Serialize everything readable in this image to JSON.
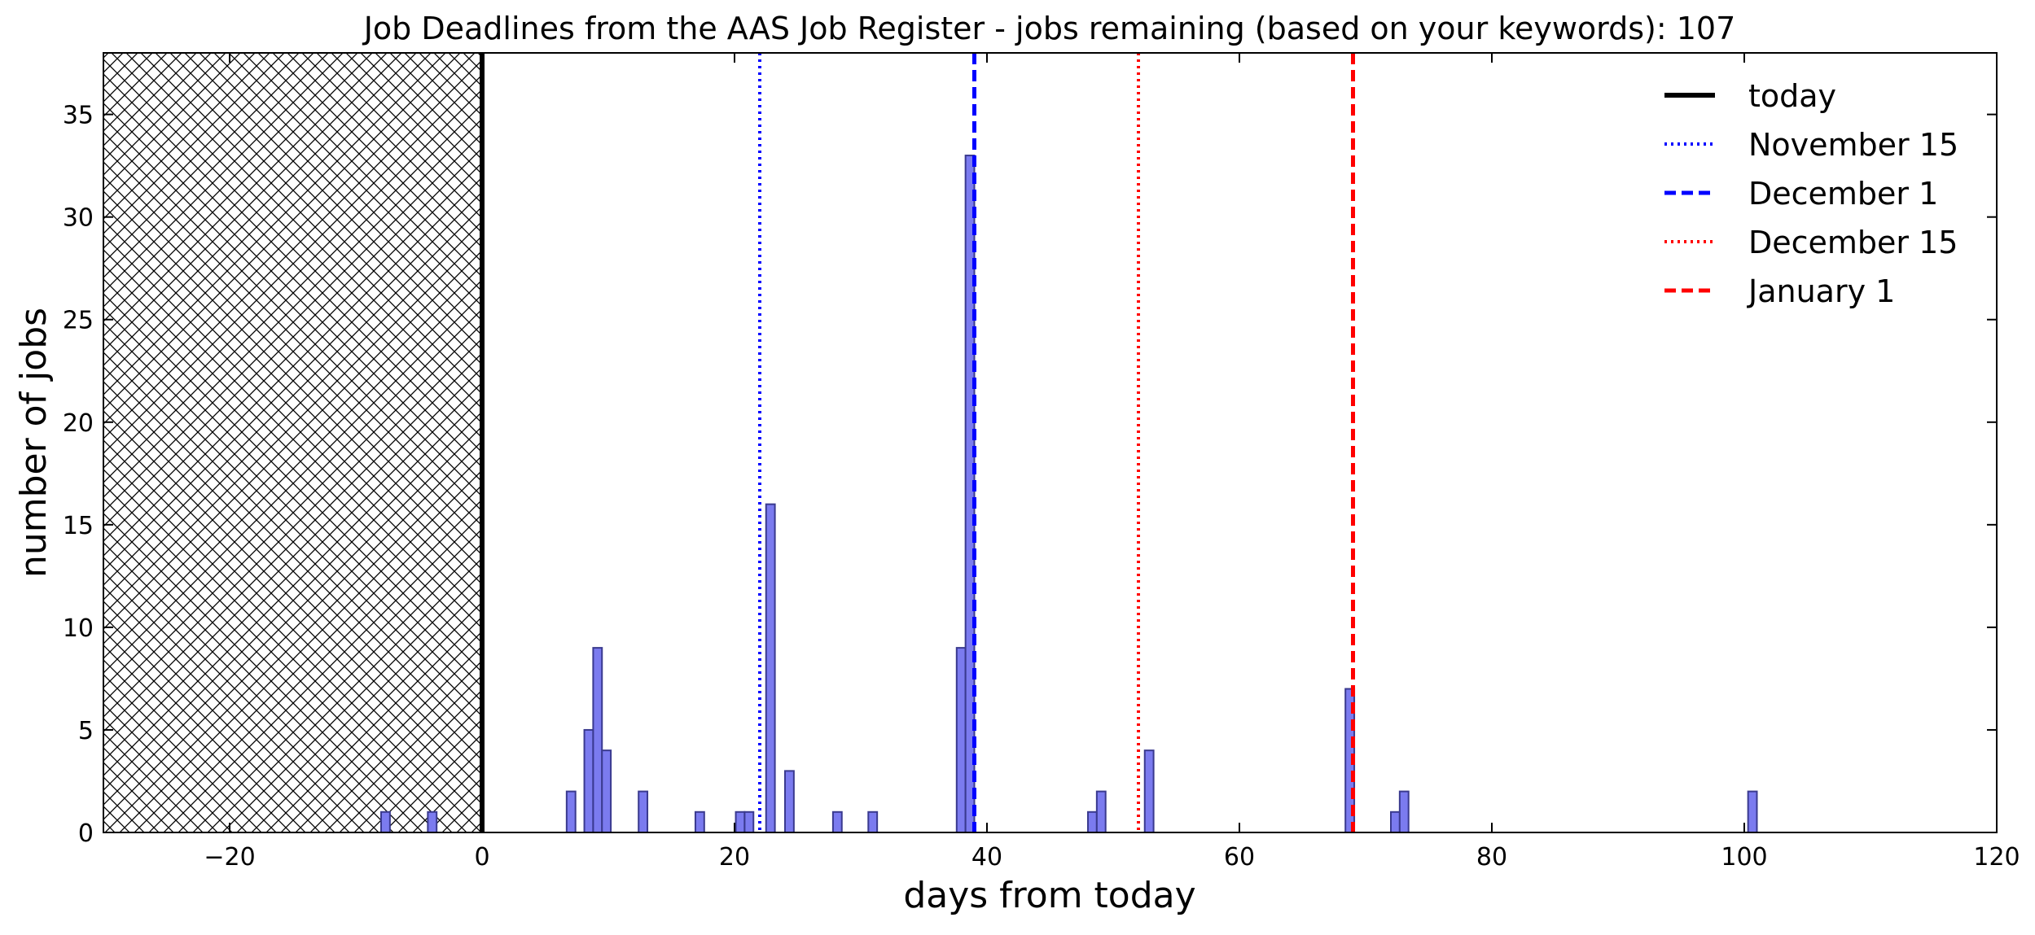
{
  "chart_data": {
    "type": "bar",
    "title": "Job Deadlines from the AAS Job Register - jobs remaining (based on your keywords): 107",
    "xlabel": "days from today",
    "ylabel": "number of jobs",
    "xlim": [
      -30,
      120
    ],
    "ylim": [
      0,
      38
    ],
    "xticks": [
      -20,
      0,
      20,
      40,
      60,
      80,
      100,
      120
    ],
    "xtick_labels": [
      "−20",
      "0",
      "20",
      "40",
      "60",
      "80",
      "100",
      "120"
    ],
    "yticks": [
      0,
      5,
      10,
      15,
      20,
      25,
      30,
      35
    ],
    "ytick_labels": [
      "0",
      "5",
      "10",
      "15",
      "20",
      "25",
      "30",
      "35"
    ],
    "grid": false,
    "legend_position": "top-right",
    "past_region": {
      "from": -30,
      "to": 0,
      "pattern": "crosshatch"
    },
    "bar_color": "#7b7bef",
    "bar_edge_color": "#3a3a8f",
    "bins": [
      {
        "start": -8,
        "end": -7.3,
        "count": 1
      },
      {
        "start": -4.3,
        "end": -3.6,
        "count": 1
      },
      {
        "start": 6.7,
        "end": 7.4,
        "count": 2
      },
      {
        "start": 8.1,
        "end": 8.8,
        "count": 5
      },
      {
        "start": 8.8,
        "end": 9.5,
        "count": 9
      },
      {
        "start": 9.5,
        "end": 10.2,
        "count": 4
      },
      {
        "start": 12.4,
        "end": 13.1,
        "count": 2
      },
      {
        "start": 16.9,
        "end": 17.6,
        "count": 1
      },
      {
        "start": 20.1,
        "end": 20.8,
        "count": 1
      },
      {
        "start": 20.8,
        "end": 21.5,
        "count": 1
      },
      {
        "start": 22.5,
        "end": 23.2,
        "count": 16
      },
      {
        "start": 24.0,
        "end": 24.7,
        "count": 3
      },
      {
        "start": 27.8,
        "end": 28.5,
        "count": 1
      },
      {
        "start": 30.6,
        "end": 31.3,
        "count": 1
      },
      {
        "start": 37.6,
        "end": 38.3,
        "count": 9
      },
      {
        "start": 38.3,
        "end": 39.0,
        "count": 33
      },
      {
        "start": 48.0,
        "end": 48.7,
        "count": 1
      },
      {
        "start": 48.7,
        "end": 49.4,
        "count": 2
      },
      {
        "start": 52.5,
        "end": 53.2,
        "count": 4
      },
      {
        "start": 68.4,
        "end": 69.1,
        "count": 7
      },
      {
        "start": 72.0,
        "end": 72.7,
        "count": 1
      },
      {
        "start": 72.7,
        "end": 73.4,
        "count": 2
      },
      {
        "start": 100.3,
        "end": 101.0,
        "count": 2
      }
    ],
    "reference_lines": [
      {
        "name": "today",
        "x": 0,
        "color": "#000000",
        "style": "solid"
      },
      {
        "name": "November 15",
        "x": 22,
        "color": "#0000ff",
        "style": "dotted"
      },
      {
        "name": "December 1",
        "x": 39,
        "color": "#0000ff",
        "style": "dashed"
      },
      {
        "name": "December 15",
        "x": 52,
        "color": "#ff0000",
        "style": "dotted"
      },
      {
        "name": "January 1",
        "x": 69,
        "color": "#ff0000",
        "style": "dashed"
      }
    ]
  }
}
